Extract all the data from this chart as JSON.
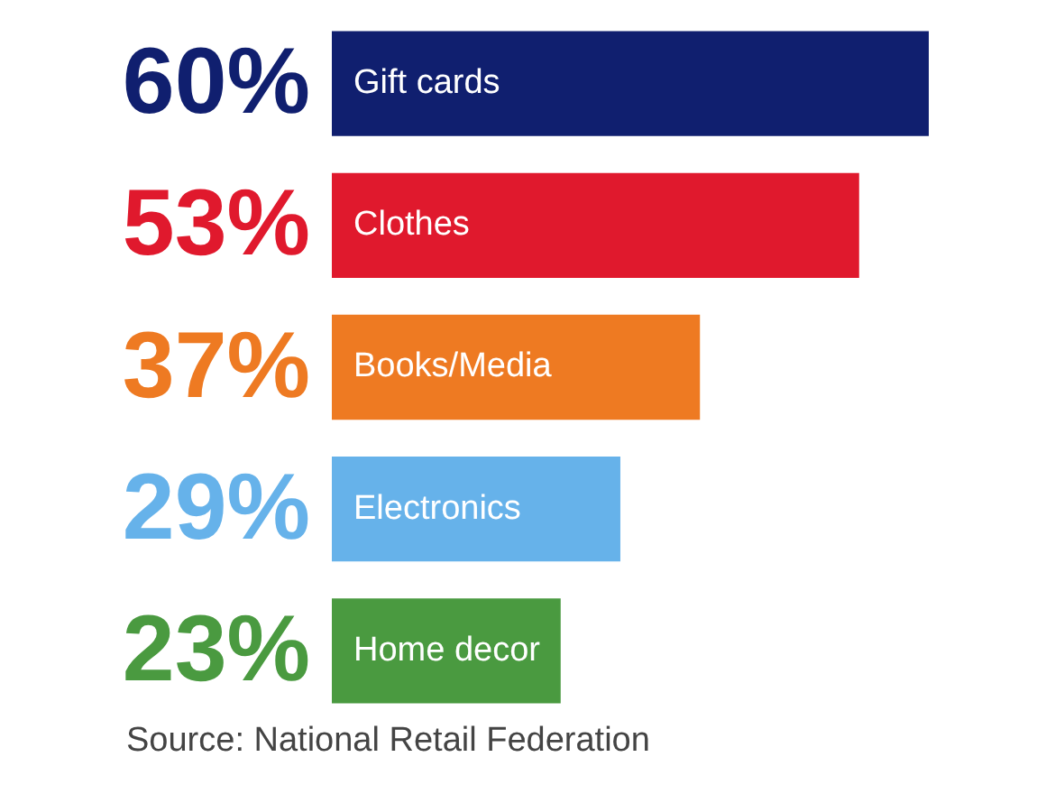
{
  "chart_data": {
    "type": "bar",
    "orientation": "horizontal",
    "categories": [
      "Gift cards",
      "Clothes",
      "Books/Media",
      "Electronics",
      "Home decor"
    ],
    "values": [
      60,
      53,
      37,
      29,
      23
    ],
    "colors": [
      "#101f6f",
      "#e0192d",
      "#ee7a22",
      "#66b2ea",
      "#4a9a40"
    ],
    "value_labels": [
      "60%",
      "53%",
      "37%",
      "29%",
      "23%"
    ],
    "annotations": [
      "Source: National Retail Federation"
    ]
  }
}
